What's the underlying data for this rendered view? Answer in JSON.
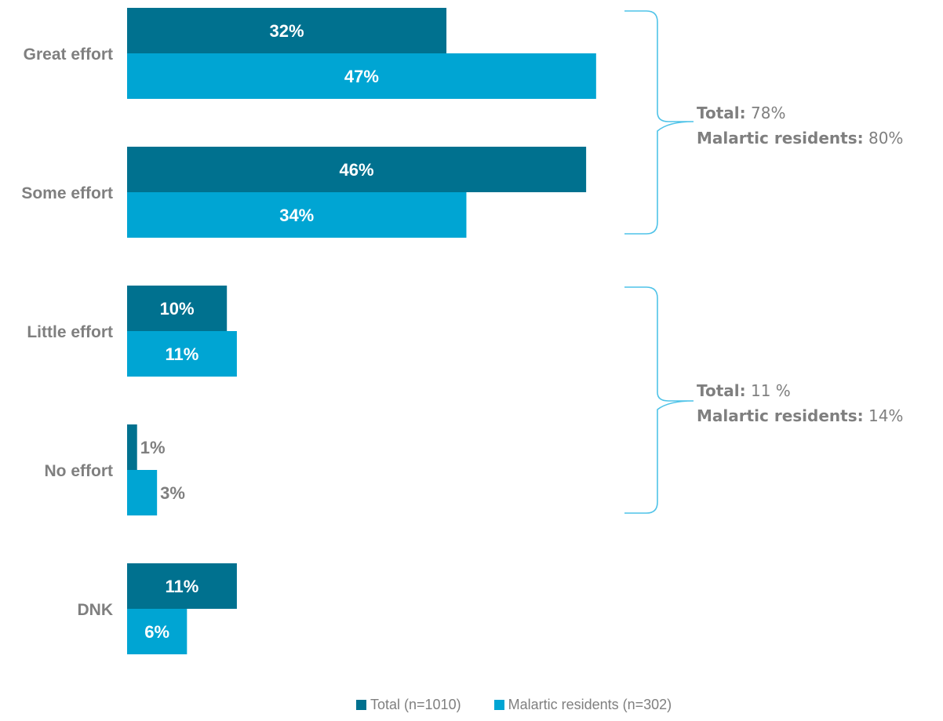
{
  "chart_data": {
    "type": "bar",
    "orientation": "horizontal",
    "categories": [
      "Great effort",
      "Some effort",
      "Little effort",
      "No effort",
      "DNK"
    ],
    "series": [
      {
        "name": "Total (n=1010)",
        "color": "#00718f",
        "values": [
          32,
          46,
          10,
          1,
          11
        ],
        "labels": [
          "32%",
          "46%",
          "10%",
          "1%",
          "11%"
        ]
      },
      {
        "name": "Malartic residents (n=302)",
        "color": "#00a5d3",
        "values": [
          47,
          34,
          11,
          3,
          6
        ],
        "labels": [
          "47%",
          "34%",
          "11%",
          "3%",
          "6%"
        ]
      }
    ],
    "unit": "%",
    "xlim": [
      0,
      50
    ],
    "grid": false,
    "legend_position": "bottom",
    "annotations": [
      {
        "groups": [
          "Great effort",
          "Some effort"
        ],
        "total_label": "Total:",
        "total_value": "78%",
        "residents_label": "Malartic residents:",
        "residents_value": "80%"
      },
      {
        "groups": [
          "Little effort",
          "No effort"
        ],
        "total_label": "Total:",
        "total_value": "11 %",
        "residents_label": "Malartic residents:",
        "residents_value": "14%"
      }
    ]
  }
}
